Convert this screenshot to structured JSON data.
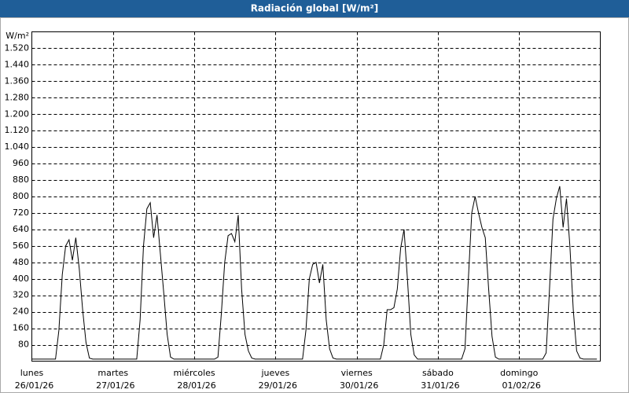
{
  "chart_data": {
    "type": "line",
    "title": "Radiación global [W/m²]",
    "y_label": "W/m²",
    "days": [
      {
        "day": "lunes",
        "date": "26/01/26"
      },
      {
        "day": "martes",
        "date": "27/01/26"
      },
      {
        "day": "miércoles",
        "date": "28/01/26"
      },
      {
        "day": "jueves",
        "date": "29/01/26"
      },
      {
        "day": "viernes",
        "date": "30/01/26"
      },
      {
        "day": "sábado",
        "date": "31/01/26"
      },
      {
        "day": "domingo",
        "date": "01/02/26"
      }
    ],
    "series": [
      {
        "name": "Radiación global",
        "color": "#000000",
        "values": [
          10,
          10,
          10,
          10,
          10,
          10,
          10,
          10,
          150,
          420,
          560,
          590,
          490,
          600,
          450,
          250,
          90,
          15,
          10,
          10,
          10,
          10,
          10,
          10,
          10,
          10,
          10,
          10,
          10,
          10,
          10,
          10,
          200,
          560,
          740,
          770,
          600,
          710,
          520,
          330,
          130,
          20,
          10,
          10,
          10,
          10,
          10,
          10,
          10,
          10,
          10,
          10,
          10,
          10,
          10,
          20,
          230,
          480,
          610,
          620,
          580,
          710,
          350,
          130,
          50,
          15,
          10,
          10,
          10,
          10,
          10,
          10,
          10,
          10,
          10,
          10,
          10,
          10,
          10,
          10,
          10,
          150,
          400,
          470,
          480,
          380,
          470,
          200,
          60,
          15,
          10,
          10,
          10,
          10,
          10,
          10,
          10,
          10,
          10,
          10,
          10,
          10,
          10,
          10,
          80,
          250,
          250,
          260,
          350,
          550,
          640,
          400,
          130,
          30,
          10,
          10,
          10,
          10,
          10,
          10,
          10,
          10,
          10,
          10,
          10,
          10,
          10,
          10,
          60,
          400,
          720,
          800,
          720,
          650,
          600,
          350,
          120,
          20,
          10,
          10,
          10,
          10,
          10,
          10,
          10,
          10,
          10,
          10,
          10,
          10,
          10,
          10,
          40,
          350,
          690,
          790,
          850,
          650,
          790,
          560,
          250,
          50,
          15,
          10,
          10,
          10,
          10,
          10
        ]
      }
    ],
    "ylim": [
      0,
      1600
    ],
    "yticks": [
      80,
      160,
      240,
      320,
      400,
      480,
      560,
      640,
      720,
      800,
      880,
      960,
      {
        "value": 1040,
        "label": "1.040"
      },
      {
        "value": 1120,
        "label": "1.120"
      },
      {
        "value": 1200,
        "label": "1.200"
      },
      {
        "value": 1280,
        "label": "1.280"
      },
      {
        "value": 1360,
        "label": "1.360"
      },
      {
        "value": 1440,
        "label": "1.440"
      },
      {
        "value": 1520,
        "label": "1.520"
      }
    ],
    "grid": true
  }
}
